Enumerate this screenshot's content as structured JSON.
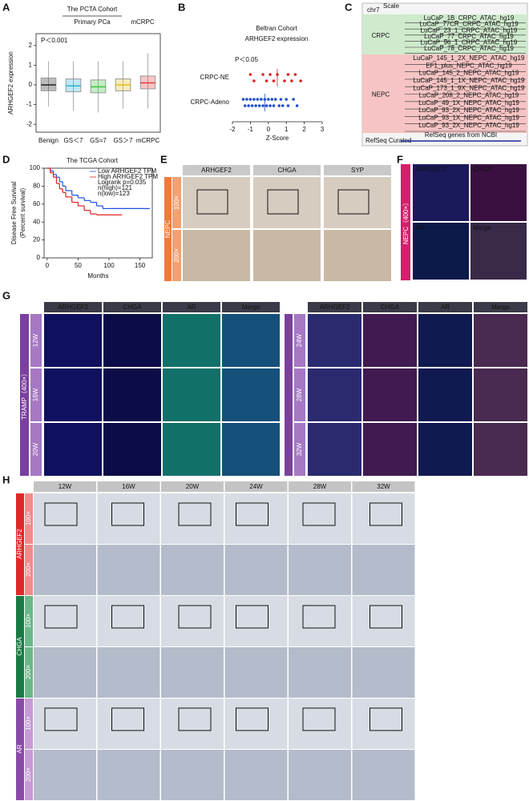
{
  "panel_labels": [
    "A",
    "B",
    "C",
    "D",
    "E",
    "F",
    "G",
    "H"
  ],
  "chart_data": [
    {
      "type": "box",
      "title": "The PCTA Cohort",
      "group_labels": [
        "Primary PCa",
        "mCRPC"
      ],
      "annotation": "P＜0.001",
      "ylabel": "ARHGEF2 expression",
      "categories": [
        "Benign",
        "GS＜7",
        "GS=7",
        "GS＞7",
        "mCRPC"
      ],
      "colors": [
        "#222222",
        "#2ab7d6",
        "#3cc43c",
        "#e0c020",
        "#e04040"
      ],
      "boxes": [
        {
          "min": -1.1,
          "q1": -0.3,
          "median": 0,
          "q3": 0.35,
          "max": 1.2
        },
        {
          "min": -1.3,
          "q1": -0.35,
          "median": -0.05,
          "q3": 0.3,
          "max": 1.2
        },
        {
          "min": -1.4,
          "q1": -0.4,
          "median": -0.1,
          "q3": 0.25,
          "max": 1.2
        },
        {
          "min": -1.2,
          "q1": -0.3,
          "median": 0,
          "q3": 0.3,
          "max": 1.2
        },
        {
          "min": -1.2,
          "q1": -0.2,
          "median": 0.1,
          "q3": 0.45,
          "max": 1.6
        }
      ],
      "ylim": [
        -2.4,
        2.6
      ],
      "yticks": [
        -2,
        -1,
        0,
        1,
        2
      ]
    },
    {
      "type": "strip",
      "title": "Beltran Cohort",
      "subtitle": "ARHGEF2 expression",
      "annotation": "P＜0.05",
      "xlabel": "Z-Score",
      "categories": [
        "CRPC-NE",
        "CRPC-Adeno"
      ],
      "colors": [
        "#e02020",
        "#1f4fc8"
      ],
      "groups": [
        [
          -1.0,
          -0.8,
          -0.3,
          -0.1,
          0.1,
          0.3,
          0.5,
          0.9,
          1.1,
          1.3,
          1.5,
          1.8
        ],
        [
          -1.4,
          -1.3,
          -1.2,
          -1.1,
          -1.0,
          -0.9,
          -0.8,
          -0.7,
          -0.6,
          -0.5,
          -0.4,
          -0.3,
          -0.2,
          -0.1,
          0,
          0.1,
          0.2,
          0.3,
          0.4,
          0.6,
          0.7,
          0.8,
          1.0,
          1.1,
          1.4,
          1.6
        ]
      ],
      "medians": [
        0.5,
        -0.2
      ],
      "xlim": [
        -2,
        3
      ],
      "xticks": [
        -2,
        -1,
        0,
        1,
        2,
        3
      ]
    },
    {
      "type": "step",
      "title": "The TCGA Cohort",
      "ylabel": [
        "Disease Free Survival",
        "(Percent survival)"
      ],
      "xlabel": "Months",
      "annotations": [
        "Logrank p=0.035",
        "n(high)=121",
        "n(low)=123"
      ],
      "series": [
        {
          "name": "Low ARHGEF2 TPM",
          "color": "#1f4fe0",
          "x": [
            0,
            5,
            10,
            15,
            20,
            25,
            30,
            40,
            50,
            60,
            70,
            80,
            90,
            100,
            165
          ],
          "values": [
            100,
            97,
            93,
            90,
            85,
            80,
            75,
            70,
            67,
            64,
            62,
            58,
            55,
            55,
            55
          ]
        },
        {
          "name": "High ARHGEF2 TPM",
          "color": "#e02020",
          "x": [
            0,
            5,
            10,
            15,
            20,
            25,
            30,
            40,
            50,
            60,
            70,
            80,
            120
          ],
          "values": [
            100,
            95,
            90,
            83,
            77,
            73,
            68,
            62,
            58,
            53,
            49,
            48,
            48
          ]
        }
      ],
      "xlim": [
        -5,
        170
      ],
      "xticks": [
        0,
        50,
        100,
        150
      ],
      "ylim": [
        0,
        100
      ],
      "yticks": [
        0,
        20,
        40,
        60,
        80,
        100
      ]
    }
  ],
  "panel_c": {
    "scale": "Scale",
    "chr": "chr7",
    "groups": [
      {
        "name": "CRPC",
        "tracks": [
          "LuCaP_1B_CRPC_ATAC_hg19",
          "LuCaP_77CR_CRPC_ATAC_hg19",
          "LuCaP_23_1_CRPC_ATAC_hg19",
          "LuCaP_77_CRPC_ATAC_hg19",
          "LuCaP_96_1_CRPC_ATAC_hg19",
          "LuCaP_78_CRPC_ATAC_hg19"
        ]
      },
      {
        "name": "NEPC",
        "tracks": [
          "LuCaP_145_1_2X_NEPC_ATAC_hg19",
          "EF1_plus_NEPC_ATAC_hg19",
          "LuCaP_145_2_NEPC_ATAC_hg19",
          "LuCaP_145_1_1X_NEPC_ATAC_hg19",
          "LuCaP_173_1_9X_NEPC_ATAC_hg19",
          "LuCaP_208_2_NEPC_ATAC_hg19",
          "LuCaP_49_1X_NEPC_ATAC_hg19",
          "LuCaP_93_2X_NEPC_ATAC_hg19",
          "LuCaP_93_1X_NEPC_ATAC_hg19",
          "LuCaP_93_2X_NEPC_ATAC_hg19"
        ]
      }
    ],
    "refseq": "RefSeq Curated",
    "refseq_genes": "RefSeq genes from NCBI"
  },
  "panel_e": {
    "side": "NEPC",
    "columns": [
      "ARHGEF2",
      "CHGA",
      "SYP"
    ],
    "rows": [
      "100×",
      "200×"
    ]
  },
  "panel_f": {
    "side": "NEPC（400×）",
    "channels": [
      "ARHGEF2",
      "CHGA",
      "AR",
      "Merge"
    ]
  },
  "panel_g": {
    "side": "TRAMP（400×）",
    "columns": [
      "ARHGEF2",
      "CHGA",
      "AR",
      "Merge"
    ],
    "left_rows": [
      "12W",
      "16W",
      "20W"
    ],
    "right_rows": [
      "24W",
      "28W",
      "32W"
    ]
  },
  "panel_h": {
    "columns": [
      "12W",
      "16W",
      "20W",
      "24W",
      "28W",
      "32W"
    ],
    "groups": [
      {
        "name": "ARHGEF2",
        "rows": [
          "100×",
          "200×"
        ]
      },
      {
        "name": "CHGA",
        "rows": [
          "100×",
          "200×"
        ]
      },
      {
        "name": "AR",
        "rows": [
          "100×",
          "200×"
        ]
      }
    ]
  }
}
